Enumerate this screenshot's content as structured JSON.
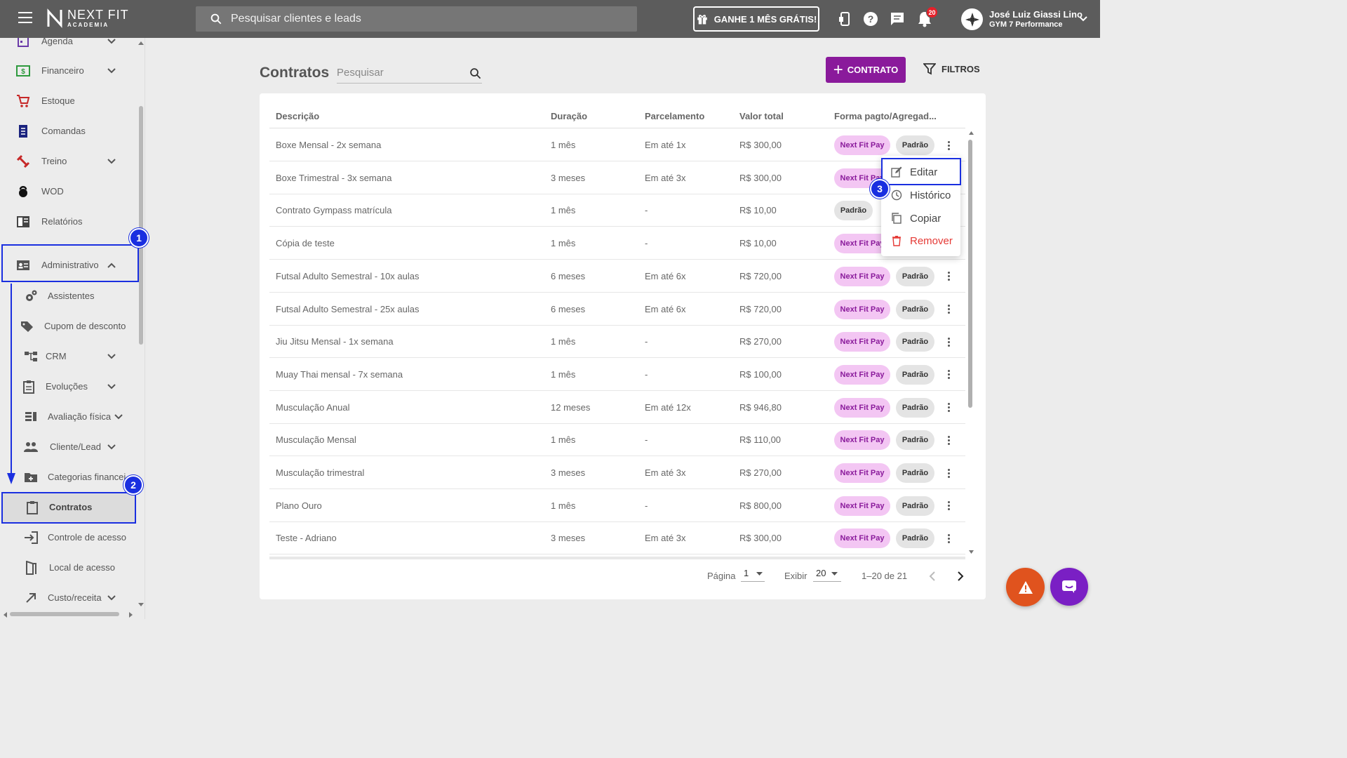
{
  "topbar": {
    "logo_text": "NEXT FIT",
    "logo_sub": "ACADEMIA",
    "search_placeholder": "Pesquisar clientes e leads",
    "promo_label": "GANHE 1 MÊS GRÁTIS!",
    "notifications_count": "20",
    "user_name": "José Luiz Giassi Lino",
    "user_gym": "GYM 7 Performance"
  },
  "sidebar": {
    "items": [
      {
        "label": "Agenda",
        "icon": "calendar-icon"
      },
      {
        "label": "Financeiro",
        "icon": "money-icon"
      },
      {
        "label": "Estoque",
        "icon": "cart-icon"
      },
      {
        "label": "Comandas",
        "icon": "receipt-icon"
      },
      {
        "label": "Treino",
        "icon": "dumbbell-icon"
      },
      {
        "label": "WOD",
        "icon": "kettlebell-icon"
      },
      {
        "label": "Relatórios",
        "icon": "report-icon"
      },
      {
        "label": "Administrativo",
        "icon": "id-card-icon"
      }
    ],
    "sub_items": [
      {
        "label": "Assistentes",
        "icon": "gears-icon"
      },
      {
        "label": "Cupom de desconto",
        "icon": "tag-icon"
      },
      {
        "label": "CRM",
        "icon": "hierarchy-icon"
      },
      {
        "label": "Evoluções",
        "icon": "clipboard-list-icon"
      },
      {
        "label": "Avaliação física",
        "icon": "list-icon"
      },
      {
        "label": "Cliente/Lead",
        "icon": "people-icon"
      },
      {
        "label": "Categorias financei",
        "icon": "folder-plus-icon"
      },
      {
        "label": "Contratos",
        "icon": "clipboard-icon"
      },
      {
        "label": "Controle de acesso",
        "icon": "login-icon"
      },
      {
        "label": "Local de acesso",
        "icon": "door-icon"
      },
      {
        "label": "Custo/receita",
        "icon": "arrow-up-right-icon"
      }
    ]
  },
  "annotations": {
    "n1": "1",
    "n2": "2",
    "n3": "3"
  },
  "main": {
    "title": "Contratos",
    "search_placeholder": "Pesquisar",
    "add_label": "CONTRATO",
    "filter_label": "FILTROS",
    "columns": [
      "Descrição",
      "Duração",
      "Parcelamento",
      "Valor total",
      "Forma pagto/Agregad..."
    ],
    "chip_nfp": "Next Fit Pay",
    "chip_padrao": "Padrão",
    "rows": [
      {
        "descricao": "Boxe Mensal - 2x semana",
        "duracao": "1 mês",
        "parcelamento": "Em até 1x",
        "valor": "R$ 300,00"
      },
      {
        "descricao": "Boxe Trimestral - 3x semana",
        "duracao": "3 meses",
        "parcelamento": "Em até 3x",
        "valor": "R$ 300,00"
      },
      {
        "descricao": "Contrato Gympass matrícula",
        "duracao": "1 mês",
        "parcelamento": "-",
        "valor": "R$ 10,00"
      },
      {
        "descricao": "Cópia de teste",
        "duracao": "1 mês",
        "parcelamento": "-",
        "valor": "R$ 10,00"
      },
      {
        "descricao": "Futsal Adulto Semestral - 10x aulas",
        "duracao": "6 meses",
        "parcelamento": "Em até 6x",
        "valor": "R$ 720,00"
      },
      {
        "descricao": "Futsal Adulto Semestral - 25x aulas",
        "duracao": "6 meses",
        "parcelamento": "Em até 6x",
        "valor": "R$ 720,00"
      },
      {
        "descricao": "Jiu Jitsu Mensal - 1x semana",
        "duracao": "1 mês",
        "parcelamento": "-",
        "valor": "R$ 270,00"
      },
      {
        "descricao": "Muay Thai mensal - 7x semana",
        "duracao": "1 mês",
        "parcelamento": "-",
        "valor": "R$ 100,00"
      },
      {
        "descricao": "Musculação Anual",
        "duracao": "12 meses",
        "parcelamento": "Em até 12x",
        "valor": "R$ 946,80"
      },
      {
        "descricao": "Musculação Mensal",
        "duracao": "1 mês",
        "parcelamento": "-",
        "valor": "R$ 110,00"
      },
      {
        "descricao": "Musculação trimestral",
        "duracao": "3 meses",
        "parcelamento": "Em até 3x",
        "valor": "R$ 270,00"
      },
      {
        "descricao": "Plano Ouro",
        "duracao": "1 mês",
        "parcelamento": "-",
        "valor": "R$ 800,00"
      },
      {
        "descricao": "Teste - Adriano",
        "duracao": "3 meses",
        "parcelamento": "Em até 3x",
        "valor": "R$ 300,00"
      }
    ],
    "pager": {
      "page_label": "Página",
      "page_value": "1",
      "show_label": "Exibir",
      "show_value": "20",
      "range": "1–20 de 21"
    }
  },
  "context_menu": {
    "items": [
      "Editar",
      "Histórico",
      "Copiar",
      "Remover"
    ]
  },
  "colors": {
    "brand": "#8a1a9b",
    "annotation": "#1a2fe0",
    "danger": "#e53935",
    "warning_fab": "#e0531e",
    "chat_fab": "#7a1fc4"
  }
}
